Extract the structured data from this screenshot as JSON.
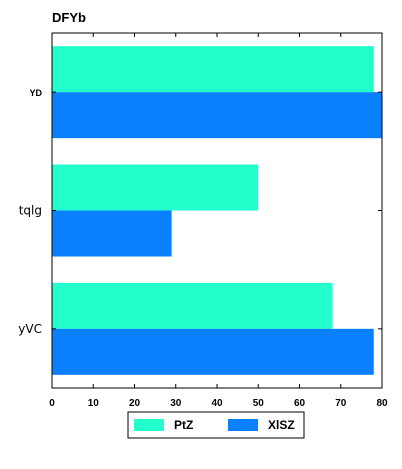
{
  "chart_data": {
    "type": "bar",
    "orientation": "horizontal",
    "title": "DFYb",
    "xlabel": "",
    "ylabel": "",
    "categories": [
      "YD",
      "tqlg",
      "yVC"
    ],
    "series": [
      {
        "name": "PtZ",
        "values": [
          78,
          50,
          68
        ],
        "color": "#22ffcc"
      },
      {
        "name": "XlSZ",
        "values": [
          80,
          29,
          78
        ],
        "color": "#0a80ff"
      }
    ],
    "xlim": [
      0,
      80
    ],
    "xticks": [
      0,
      10,
      20,
      30,
      40,
      50,
      60,
      70,
      80
    ],
    "grid": false,
    "legend_position": "bottom"
  }
}
